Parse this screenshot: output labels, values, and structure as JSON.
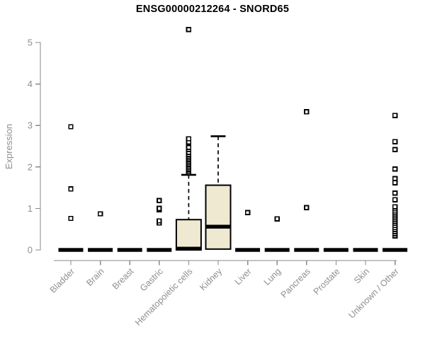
{
  "chart_data": {
    "type": "boxplot",
    "title": "ENSG00000212264 - SNORD65",
    "ylabel": "Expression",
    "xlabel": "",
    "ylim": [
      0,
      5.4
    ],
    "y_ticks": [
      0,
      1,
      2,
      3,
      4,
      5
    ],
    "grid": false,
    "legend": "none",
    "box_fill": "#f0e9d1",
    "box_stroke": "#000000",
    "axis_color": "#8a8a8a",
    "text_color": "#8e8e8e",
    "categories": [
      "Bladder",
      "Brain",
      "Breast",
      "Gastric",
      "Hematopoietic cells",
      "Kidney",
      "Liver",
      "Lung",
      "Pancreas",
      "Prostate",
      "Skin",
      "Unknown / Other"
    ],
    "boxes": [
      {
        "category": "Bladder",
        "whisker_low": 0,
        "q1": 0,
        "median": 0,
        "q3": 0,
        "whisker_high": 0,
        "outliers": [
          0.76,
          1.47,
          2.97
        ]
      },
      {
        "category": "Brain",
        "whisker_low": 0,
        "q1": 0,
        "median": 0,
        "q3": 0,
        "whisker_high": 0,
        "outliers": [
          0.87
        ]
      },
      {
        "category": "Breast",
        "whisker_low": 0,
        "q1": 0,
        "median": 0,
        "q3": 0,
        "whisker_high": 0,
        "outliers": []
      },
      {
        "category": "Gastric",
        "whisker_low": 0,
        "q1": 0,
        "median": 0,
        "q3": 0,
        "whisker_high": 0,
        "outliers": [
          0.65,
          0.7,
          0.97,
          1.0,
          1.19
        ]
      },
      {
        "category": "Hematopoietic cells",
        "whisker_low": 0,
        "q1": 0,
        "median": 0.03,
        "q3": 0.73,
        "whisker_high": 1.81,
        "outliers": [
          1.86,
          1.9,
          1.94,
          1.98,
          2.02,
          2.06,
          2.1,
          2.14,
          2.18,
          2.22,
          2.26,
          2.3,
          2.35,
          2.42,
          2.47,
          2.6,
          2.68,
          5.31
        ]
      },
      {
        "category": "Kidney",
        "whisker_low": 0,
        "q1": 0.02,
        "median": 0.56,
        "q3": 1.56,
        "whisker_high": 2.74,
        "outliers": []
      },
      {
        "category": "Liver",
        "whisker_low": 0,
        "q1": 0,
        "median": 0,
        "q3": 0,
        "whisker_high": 0,
        "outliers": [
          0.9
        ]
      },
      {
        "category": "Lung",
        "whisker_low": 0,
        "q1": 0,
        "median": 0,
        "q3": 0,
        "whisker_high": 0,
        "outliers": [
          0.75
        ]
      },
      {
        "category": "Pancreas",
        "whisker_low": 0,
        "q1": 0,
        "median": 0,
        "q3": 0,
        "whisker_high": 0,
        "outliers": [
          1.02,
          3.33
        ]
      },
      {
        "category": "Prostate",
        "whisker_low": 0,
        "q1": 0,
        "median": 0,
        "q3": 0,
        "whisker_high": 0,
        "outliers": []
      },
      {
        "category": "Skin",
        "whisker_low": 0,
        "q1": 0,
        "median": 0,
        "q3": 0,
        "whisker_high": 0,
        "outliers": []
      },
      {
        "category": "Unknown / Other",
        "whisker_low": 0,
        "q1": 0,
        "median": 0,
        "q3": 0,
        "whisker_high": 0,
        "outliers": [
          0.34,
          0.39,
          0.44,
          0.49,
          0.54,
          0.59,
          0.64,
          0.69,
          0.74,
          0.79,
          0.84,
          0.89,
          0.94,
          0.99,
          1.04,
          1.21,
          1.37,
          1.62,
          1.72,
          1.95,
          2.42,
          2.61,
          3.24
        ]
      }
    ]
  }
}
